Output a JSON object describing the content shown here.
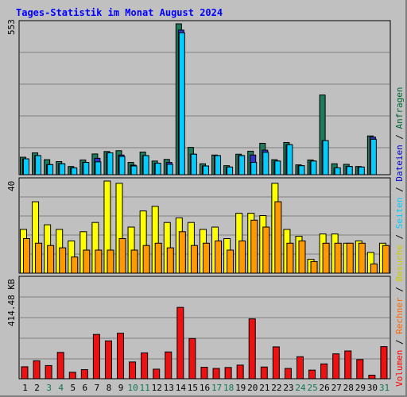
{
  "title": "Tages-Statistik im Monat August 2024",
  "y_labels": {
    "top": "553",
    "middle": "40",
    "bottom": "414.48 KB"
  },
  "legend": [
    {
      "label": "Anfragen",
      "color": "#006633"
    },
    {
      "label": "Dateien",
      "color": "#0000cc"
    },
    {
      "label": "Seiten",
      "color": "#00ccff"
    },
    {
      "label": "Besuche",
      "color": "#cccc00"
    },
    {
      "label": "Rechner",
      "color": "#ff6600"
    },
    {
      "label": "Volumen",
      "color": "#ff0000"
    }
  ],
  "colors": {
    "anfragen": "#1f7a5c",
    "dateien": "#3333cc",
    "seiten": "#00ccff",
    "besuche": "#ffff00",
    "rechner": "#ff9900",
    "volumen": "#ee1111",
    "weekday_label": "#000000",
    "weekend_label": "#117755"
  },
  "chart_data": [
    {
      "type": "bar",
      "title": "",
      "categories": [
        "1",
        "2",
        "3",
        "4",
        "5",
        "6",
        "7",
        "8",
        "9",
        "10",
        "11",
        "12",
        "13",
        "14",
        "15",
        "16",
        "17",
        "18",
        "19",
        "20",
        "21",
        "22",
        "23",
        "24",
        "25",
        "26",
        "27",
        "28",
        "29",
        "30",
        "31"
      ],
      "weekend_days": [
        "3",
        "4",
        "10",
        "11",
        "17",
        "18",
        "24",
        "25",
        "31"
      ],
      "ylim": [
        0,
        553
      ],
      "series": [
        {
          "name": "Anfragen",
          "values": [
            64,
            80,
            55,
            48,
            30,
            54,
            76,
            85,
            88,
            45,
            83,
            50,
            56,
            553,
            100,
            40,
            72,
            33,
            75,
            86,
            115,
            55,
            118,
            36,
            54,
            292,
            40,
            38,
            30,
            142,
            0
          ]
        },
        {
          "name": "Dateien",
          "values": [
            58,
            70,
            37,
            40,
            25,
            45,
            60,
            80,
            72,
            35,
            70,
            42,
            45,
            530,
            75,
            32,
            70,
            28,
            70,
            72,
            90,
            50,
            110,
            33,
            50,
            125,
            25,
            30,
            28,
            138,
            0
          ]
        },
        {
          "name": "Seiten",
          "values": [
            58,
            70,
            37,
            40,
            25,
            45,
            47,
            80,
            67,
            32,
            70,
            42,
            38,
            520,
            75,
            32,
            70,
            28,
            70,
            45,
            82,
            50,
            110,
            33,
            50,
            125,
            25,
            30,
            28,
            130,
            0
          ]
        }
      ]
    },
    {
      "type": "bar",
      "title": "",
      "categories": [
        "1",
        "2",
        "3",
        "4",
        "5",
        "6",
        "7",
        "8",
        "9",
        "10",
        "11",
        "12",
        "13",
        "14",
        "15",
        "16",
        "17",
        "18",
        "19",
        "20",
        "21",
        "22",
        "23",
        "24",
        "25",
        "26",
        "27",
        "28",
        "29",
        "30",
        "31"
      ],
      "ylim": [
        0,
        40
      ],
      "series": [
        {
          "name": "Besuche",
          "values": [
            19,
            31,
            21,
            19,
            14,
            18,
            22,
            40,
            39,
            20,
            27,
            29,
            22,
            24,
            22,
            19,
            20,
            15,
            26,
            26,
            25,
            39,
            19,
            16,
            6,
            17,
            17,
            13,
            14,
            9,
            13
          ]
        },
        {
          "name": "Rechner",
          "values": [
            15,
            13,
            12,
            11,
            7,
            10,
            10,
            10,
            15,
            10,
            12,
            13,
            11,
            18,
            12,
            13,
            14,
            10,
            14,
            23,
            20,
            31,
            13,
            14,
            5,
            13,
            13,
            13,
            13,
            4,
            12
          ]
        }
      ]
    },
    {
      "type": "bar",
      "title": "",
      "categories": [
        "1",
        "2",
        "3",
        "4",
        "5",
        "6",
        "7",
        "8",
        "9",
        "10",
        "11",
        "12",
        "13",
        "14",
        "15",
        "16",
        "17",
        "18",
        "19",
        "20",
        "21",
        "22",
        "23",
        "24",
        "25",
        "26",
        "27",
        "28",
        "29",
        "30",
        "31"
      ],
      "ylim": [
        0,
        414.48
      ],
      "series": [
        {
          "name": "Volumen",
          "values": [
            50,
            75,
            55,
            110,
            27,
            38,
            185,
            158,
            190,
            70,
            108,
            40,
            112,
            298,
            168,
            48,
            43,
            47,
            57,
            250,
            49,
            133,
            43,
            92,
            36,
            62,
            104,
            116,
            80,
            15,
            134
          ]
        }
      ]
    }
  ]
}
